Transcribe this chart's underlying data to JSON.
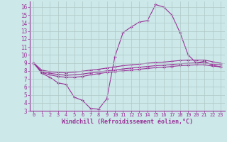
{
  "background_color": "#cce8e8",
  "grid_color": "#b0c8c8",
  "line_color": "#993399",
  "marker": "+",
  "xlabel": "Windchill (Refroidissement éolien,°C)",
  "xlim": [
    -0.5,
    23.5
  ],
  "ylim": [
    3,
    16.7
  ],
  "yticks": [
    3,
    4,
    5,
    6,
    7,
    8,
    9,
    10,
    11,
    12,
    13,
    14,
    15,
    16
  ],
  "xticks": [
    0,
    1,
    2,
    3,
    4,
    5,
    6,
    7,
    8,
    9,
    10,
    11,
    12,
    13,
    14,
    15,
    16,
    17,
    18,
    19,
    20,
    21,
    22,
    23
  ],
  "curve1_x": [
    0,
    1,
    2,
    3,
    4,
    5,
    6,
    7,
    8,
    9,
    10,
    11,
    12,
    13,
    14,
    15,
    16,
    17,
    18,
    19,
    20,
    21,
    22,
    23
  ],
  "curve1_y": [
    9.0,
    7.7,
    7.2,
    6.5,
    6.3,
    4.7,
    4.3,
    3.3,
    3.2,
    4.5,
    9.8,
    12.8,
    13.5,
    14.1,
    14.3,
    16.3,
    16.0,
    15.0,
    12.8,
    10.0,
    9.0,
    9.2,
    8.7,
    8.5
  ],
  "curve2_x": [
    0,
    1,
    2,
    3,
    4,
    5,
    6,
    7,
    8,
    9,
    10,
    11,
    12,
    13,
    14,
    15,
    16,
    17,
    18,
    19,
    20,
    21,
    22,
    23
  ],
  "curve2_y": [
    9.0,
    7.8,
    7.5,
    7.3,
    7.2,
    7.2,
    7.3,
    7.5,
    7.65,
    7.8,
    7.9,
    8.0,
    8.1,
    8.2,
    8.3,
    8.4,
    8.45,
    8.55,
    8.65,
    8.7,
    8.75,
    8.75,
    8.6,
    8.5
  ],
  "curve3_x": [
    0,
    1,
    2,
    3,
    4,
    5,
    6,
    7,
    8,
    9,
    10,
    11,
    12,
    13,
    14,
    15,
    16,
    17,
    18,
    19,
    20,
    21,
    22,
    23
  ],
  "curve3_y": [
    9.0,
    7.9,
    7.7,
    7.55,
    7.45,
    7.5,
    7.6,
    7.75,
    7.85,
    8.0,
    8.1,
    8.25,
    8.35,
    8.45,
    8.55,
    8.65,
    8.7,
    8.8,
    8.9,
    8.95,
    9.0,
    9.0,
    8.85,
    8.75
  ],
  "curve4_x": [
    0,
    1,
    2,
    3,
    4,
    5,
    6,
    7,
    8,
    9,
    10,
    11,
    12,
    13,
    14,
    15,
    16,
    17,
    18,
    19,
    20,
    21,
    22,
    23
  ],
  "curve4_y": [
    9.0,
    8.1,
    7.9,
    7.8,
    7.75,
    7.85,
    7.95,
    8.1,
    8.2,
    8.35,
    8.5,
    8.65,
    8.75,
    8.85,
    8.95,
    9.05,
    9.1,
    9.2,
    9.3,
    9.35,
    9.35,
    9.35,
    9.15,
    8.95
  ]
}
